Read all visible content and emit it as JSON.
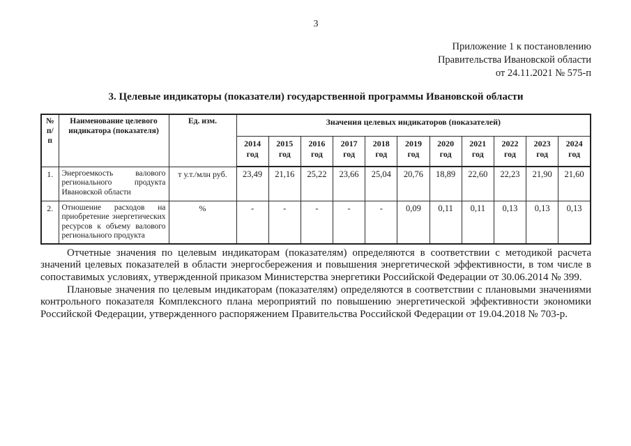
{
  "page": {
    "number": "3",
    "appendix_lines": [
      "Приложение 1 к постановлению",
      "Правительства Ивановской области",
      "от 24.11.2021 № 575-п"
    ],
    "heading": "3. Целевые индикаторы (показатели) государственной программы Ивановской области"
  },
  "table": {
    "headers": {
      "num": "№ п/п",
      "name": "Наименование целевого индикатора (показателя)",
      "unit": "Ед. изм.",
      "values_group": "Значения целевых индикаторов (показателей)"
    },
    "years": [
      "2014 год",
      "2015 год",
      "2016 год",
      "2017 год",
      "2018 год",
      "2019 год",
      "2020 год",
      "2021 год",
      "2022 год",
      "2023 год",
      "2024 год"
    ],
    "rows": [
      {
        "num": "1.",
        "name": "Энергоемкость валового регионального продукта Ивановской области",
        "unit": "т у.т./млн руб.",
        "values": [
          "23,49",
          "21,16",
          "25,22",
          "23,66",
          "25,04",
          "20,76",
          "18,89",
          "22,60",
          "22,23",
          "21,90",
          "21,60"
        ]
      },
      {
        "num": "2.",
        "name": "Отношение расходов на приобретение энергетических ресурсов к объему валового регионального продукта",
        "unit": "%",
        "values": [
          "-",
          "-",
          "-",
          "-",
          "-",
          "0,09",
          "0,11",
          "0,11",
          "0,13",
          "0,13",
          "0,13"
        ]
      }
    ]
  },
  "paragraphs": [
    "Отчетные значения по целевым индикаторам (показателям) определяются в соответствии с методикой расчета значений целевых показателей в области энергосбережения и повышения энергетической эффективности, в том числе в сопоставимых условиях, утвержденной приказом Министерства энергетики Российской Федерации от 30.06.2014 № 399.",
    "Плановые значения по целевым индикаторам (показателям) определяются в соответствии с плановыми значениями контрольного показателя Комплексного плана мероприятий по повышению энергетической эффективности экономики Российской Федерации, утвержденного распоряжением Правительства Российской Федерации от 19.04.2018 № 703-р."
  ]
}
